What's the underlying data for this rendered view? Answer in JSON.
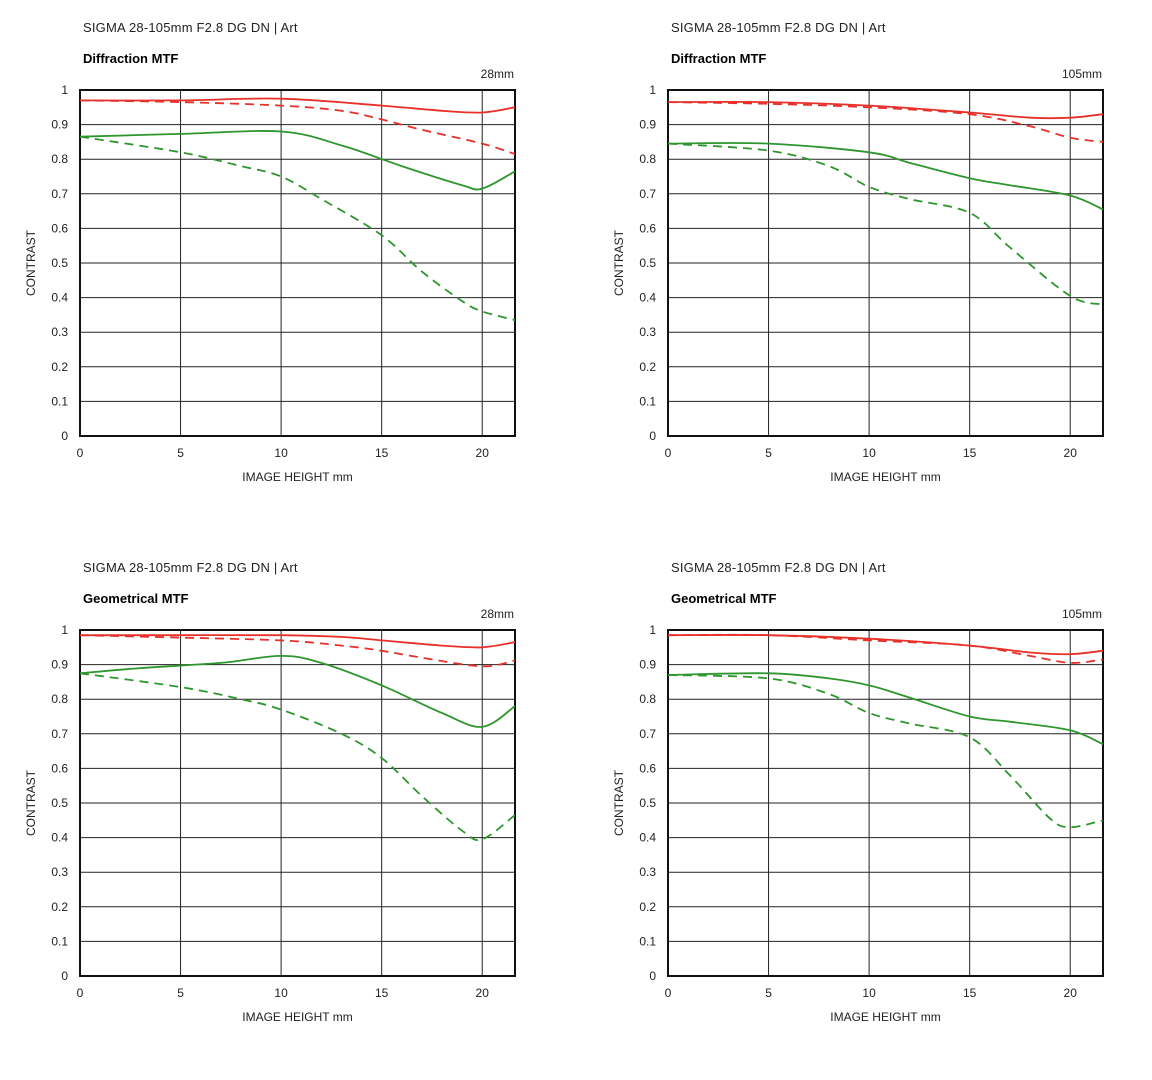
{
  "chart_data": [
    {
      "type": "line",
      "title": "SIGMA 28-105mm F2.8 DG DN | Art",
      "subtitle": "Diffraction MTF",
      "focal_label": "28mm",
      "xlabel": "IMAGE HEIGHT   mm",
      "ylabel": "CONTRAST",
      "xlim": [
        0,
        21.63
      ],
      "ylim": [
        0,
        1
      ],
      "xticks": [
        "0",
        "5",
        "10",
        "15",
        "20"
      ],
      "xtick_values": [
        0,
        5,
        10,
        15,
        20
      ],
      "yticks": [
        "0",
        "0.1",
        "0.2",
        "0.3",
        "0.4",
        "0.5",
        "0.6",
        "0.7",
        "0.8",
        "0.9",
        "1"
      ],
      "ytick_values": [
        0,
        0.1,
        0.2,
        0.3,
        0.4,
        0.5,
        0.6,
        0.7,
        0.8,
        0.9,
        1
      ],
      "grid": true,
      "series": [
        {
          "color": "#e8302a",
          "dash": false,
          "x": [
            0,
            5,
            10,
            15,
            18,
            20,
            21.63
          ],
          "y": [
            0.97,
            0.97,
            0.975,
            0.955,
            0.94,
            0.935,
            0.95
          ]
        },
        {
          "color": "#e8302a",
          "dash": true,
          "x": [
            0,
            5,
            10,
            13,
            15,
            17,
            20,
            21.63
          ],
          "y": [
            0.97,
            0.965,
            0.955,
            0.94,
            0.915,
            0.885,
            0.845,
            0.815
          ]
        },
        {
          "color": "#2e962e",
          "dash": false,
          "x": [
            0,
            5,
            10,
            13,
            16,
            19,
            20,
            21.63
          ],
          "y": [
            0.865,
            0.873,
            0.88,
            0.84,
            0.78,
            0.725,
            0.715,
            0.765
          ]
        },
        {
          "color": "#2e962e",
          "dash": true,
          "x": [
            0,
            5,
            8,
            10,
            12,
            15,
            17,
            19,
            20,
            21.63
          ],
          "y": [
            0.865,
            0.82,
            0.78,
            0.75,
            0.685,
            0.58,
            0.475,
            0.39,
            0.36,
            0.335
          ]
        }
      ]
    },
    {
      "type": "line",
      "title": "SIGMA 28-105mm F2.8 DG DN | Art",
      "subtitle": "Diffraction MTF",
      "focal_label": "105mm",
      "xlabel": "IMAGE HEIGHT   mm",
      "ylabel": "CONTRAST",
      "xlim": [
        0,
        21.63
      ],
      "ylim": [
        0,
        1
      ],
      "xticks": [
        "0",
        "5",
        "10",
        "15",
        "20"
      ],
      "xtick_values": [
        0,
        5,
        10,
        15,
        20
      ],
      "yticks": [
        "0",
        "0.1",
        "0.2",
        "0.3",
        "0.4",
        "0.5",
        "0.6",
        "0.7",
        "0.8",
        "0.9",
        "1"
      ],
      "ytick_values": [
        0,
        0.1,
        0.2,
        0.3,
        0.4,
        0.5,
        0.6,
        0.7,
        0.8,
        0.9,
        1
      ],
      "grid": true,
      "series": [
        {
          "color": "#e8302a",
          "dash": false,
          "x": [
            0,
            5,
            10,
            15,
            18,
            20,
            21.63
          ],
          "y": [
            0.965,
            0.965,
            0.955,
            0.935,
            0.92,
            0.92,
            0.93
          ]
        },
        {
          "color": "#e8302a",
          "dash": true,
          "x": [
            0,
            5,
            10,
            15,
            18,
            20,
            21.63
          ],
          "y": [
            0.965,
            0.96,
            0.95,
            0.93,
            0.895,
            0.862,
            0.85
          ]
        },
        {
          "color": "#2e962e",
          "dash": false,
          "x": [
            0,
            5,
            10,
            12,
            15,
            17,
            20,
            21.63
          ],
          "y": [
            0.845,
            0.845,
            0.82,
            0.79,
            0.745,
            0.725,
            0.695,
            0.655
          ]
        },
        {
          "color": "#2e962e",
          "dash": true,
          "x": [
            0,
            5,
            8,
            10,
            12,
            15,
            17,
            20,
            21.63
          ],
          "y": [
            0.845,
            0.825,
            0.78,
            0.72,
            0.685,
            0.645,
            0.545,
            0.405,
            0.38
          ]
        }
      ]
    },
    {
      "type": "line",
      "title": "SIGMA 28-105mm F2.8 DG DN | Art",
      "subtitle": "Geometrical MTF",
      "focal_label": "28mm",
      "xlabel": "IMAGE HEIGHT   mm",
      "ylabel": "CONTRAST",
      "xlim": [
        0,
        21.63
      ],
      "ylim": [
        0,
        1
      ],
      "xticks": [
        "0",
        "5",
        "10",
        "15",
        "20"
      ],
      "xtick_values": [
        0,
        5,
        10,
        15,
        20
      ],
      "yticks": [
        "0",
        "0.1",
        "0.2",
        "0.3",
        "0.4",
        "0.5",
        "0.6",
        "0.7",
        "0.8",
        "0.9",
        "1"
      ],
      "ytick_values": [
        0,
        0.1,
        0.2,
        0.3,
        0.4,
        0.5,
        0.6,
        0.7,
        0.8,
        0.9,
        1
      ],
      "grid": true,
      "series": [
        {
          "color": "#e8302a",
          "dash": false,
          "x": [
            0,
            5,
            10,
            13,
            15,
            18,
            20,
            21.63
          ],
          "y": [
            0.985,
            0.985,
            0.985,
            0.98,
            0.97,
            0.955,
            0.95,
            0.965
          ]
        },
        {
          "color": "#e8302a",
          "dash": true,
          "x": [
            0,
            5,
            10,
            13,
            15,
            17,
            20,
            21.63
          ],
          "y": [
            0.985,
            0.978,
            0.97,
            0.955,
            0.94,
            0.92,
            0.895,
            0.912
          ]
        },
        {
          "color": "#2e962e",
          "dash": false,
          "x": [
            0,
            3,
            7,
            10,
            12,
            15,
            18,
            20,
            21.63
          ],
          "y": [
            0.875,
            0.89,
            0.905,
            0.925,
            0.905,
            0.84,
            0.76,
            0.72,
            0.78
          ]
        },
        {
          "color": "#2e962e",
          "dash": true,
          "x": [
            0,
            5,
            8,
            10,
            13,
            15,
            17,
            19,
            20,
            21.63
          ],
          "y": [
            0.875,
            0.835,
            0.8,
            0.77,
            0.7,
            0.63,
            0.52,
            0.42,
            0.395,
            0.465
          ]
        }
      ]
    },
    {
      "type": "line",
      "title": "SIGMA 28-105mm F2.8 DG DN | Art",
      "subtitle": "Geometrical MTF",
      "focal_label": "105mm",
      "xlabel": "IMAGE HEIGHT   mm",
      "ylabel": "CONTRAST",
      "xlim": [
        0,
        21.63
      ],
      "ylim": [
        0,
        1
      ],
      "xticks": [
        "0",
        "5",
        "10",
        "15",
        "20"
      ],
      "xtick_values": [
        0,
        5,
        10,
        15,
        20
      ],
      "yticks": [
        "0",
        "0.1",
        "0.2",
        "0.3",
        "0.4",
        "0.5",
        "0.6",
        "0.7",
        "0.8",
        "0.9",
        "1"
      ],
      "ytick_values": [
        0,
        0.1,
        0.2,
        0.3,
        0.4,
        0.5,
        0.6,
        0.7,
        0.8,
        0.9,
        1
      ],
      "grid": true,
      "series": [
        {
          "color": "#e8302a",
          "dash": false,
          "x": [
            0,
            5,
            10,
            15,
            18,
            20,
            21.63
          ],
          "y": [
            0.985,
            0.985,
            0.975,
            0.955,
            0.935,
            0.93,
            0.94
          ]
        },
        {
          "color": "#e8302a",
          "dash": true,
          "x": [
            0,
            5,
            10,
            15,
            18,
            20,
            21.63
          ],
          "y": [
            0.985,
            0.985,
            0.97,
            0.955,
            0.925,
            0.905,
            0.915
          ]
        },
        {
          "color": "#2e962e",
          "dash": false,
          "x": [
            0,
            5,
            8,
            10,
            12,
            15,
            17,
            20,
            21.63
          ],
          "y": [
            0.87,
            0.875,
            0.86,
            0.84,
            0.805,
            0.75,
            0.735,
            0.71,
            0.67
          ]
        },
        {
          "color": "#2e962e",
          "dash": true,
          "x": [
            0,
            5,
            8,
            10,
            12,
            15,
            17,
            19,
            20,
            21.63
          ],
          "y": [
            0.87,
            0.86,
            0.815,
            0.76,
            0.73,
            0.69,
            0.58,
            0.455,
            0.43,
            0.45
          ]
        }
      ]
    }
  ]
}
